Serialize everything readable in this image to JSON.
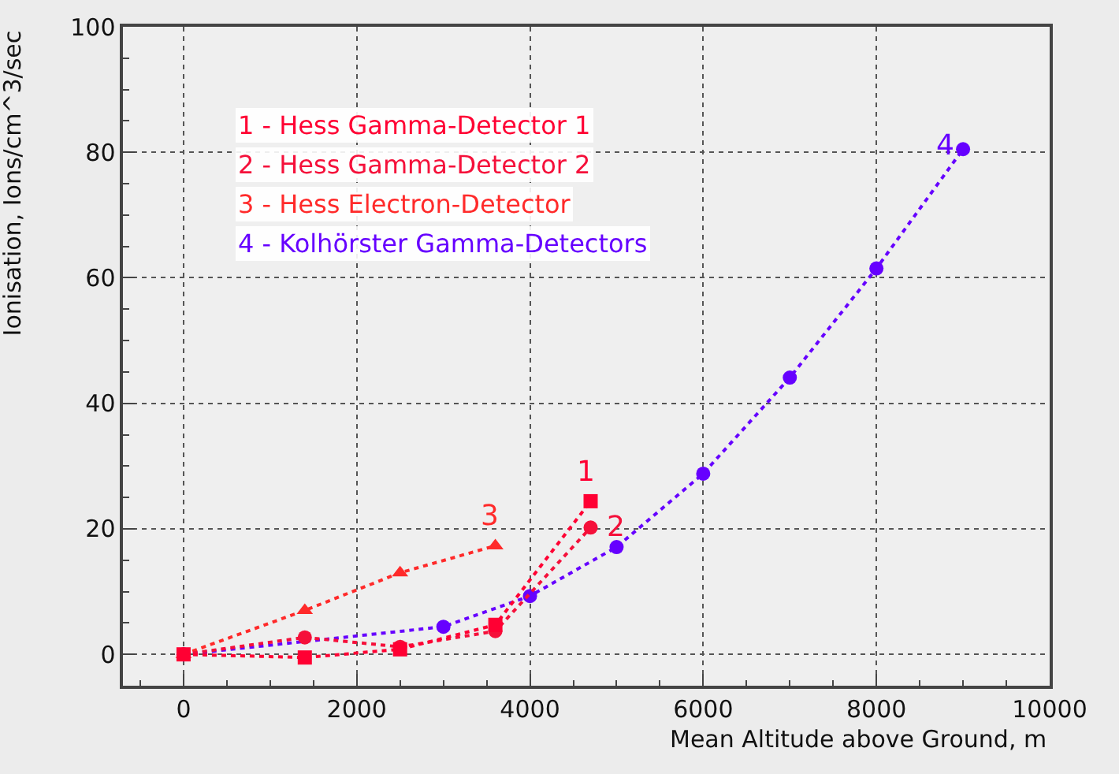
{
  "chart_data": {
    "type": "line",
    "xlabel": "Mean Altitude above Ground, m",
    "ylabel": "Ionisation, Ions/cm^3/sec",
    "xlim": [
      -700,
      10000
    ],
    "xticks": [
      0,
      2000,
      4000,
      6000,
      8000,
      10000
    ],
    "ylim": [
      -5,
      100
    ],
    "yticks": [
      0,
      20,
      40,
      60,
      80,
      100
    ],
    "grid": true,
    "legend": "top left",
    "line_style": "dotted",
    "series": [
      {
        "name": "1 - Hess Gamma-Detector 1",
        "color": "#ff0033",
        "marker": "square",
        "x": [
          0,
          1400,
          2500,
          3600,
          4700
        ],
        "values": [
          0,
          -0.5,
          0.8,
          4.7,
          24.4
        ]
      },
      {
        "name": "2 - Hess Gamma-Detector 2",
        "color": "#f5103a",
        "marker": "circle",
        "x": [
          0,
          1400,
          2500,
          3600,
          4700
        ],
        "values": [
          0,
          2.7,
          1.2,
          3.7,
          20.2
        ]
      },
      {
        "name": "3 - Hess Electron-Detector",
        "color": "#ff2a2a",
        "marker": "triangle",
        "x": [
          0,
          1400,
          2500,
          3600
        ],
        "values": [
          0,
          7,
          13,
          17.3
        ]
      },
      {
        "name": "4 - Kolhörster Gamma-Detectors",
        "color": "#6600ff",
        "marker": "circle",
        "x": [
          0,
          3000,
          4000,
          5000,
          6000,
          7000,
          8000,
          9000
        ],
        "values": [
          0,
          4.4,
          9.3,
          17.1,
          28.8,
          44.1,
          61.5,
          80.5
        ]
      }
    ],
    "annotations": [
      {
        "text": "1",
        "x": 4700,
        "y": 24.4
      },
      {
        "text": "2",
        "x": 4700,
        "y": 20.2
      },
      {
        "text": "3",
        "x": 3600,
        "y": 17.3
      },
      {
        "text": "4",
        "x": 9000,
        "y": 80.5
      }
    ]
  }
}
